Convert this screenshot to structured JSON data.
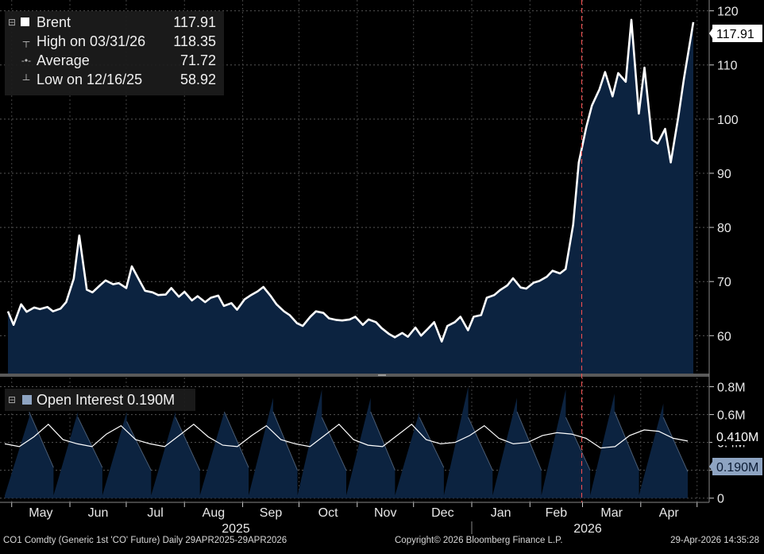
{
  "legend": {
    "rows": [
      {
        "label": "Brent",
        "value": "117.91"
      },
      {
        "label": "High on 03/31/26",
        "value": "118.35"
      },
      {
        "label": "Average",
        "value": "71.72"
      },
      {
        "label": "Low on 12/16/25",
        "value": "58.92"
      }
    ]
  },
  "lower_legend": {
    "label": "Open Interest 0.190M"
  },
  "footer": {
    "left": "CO1 Comdty (Generic 1st 'CO' Future) Daily 29APR2025-29APR2026",
    "center": "Copyright© 2026 Bloomberg Finance L.P.",
    "right": "29-Apr-2026 14:35:28"
  },
  "colors": {
    "background": "#000000",
    "fill": "#0c2340",
    "line": "#ffffff",
    "marker": "#ff5050",
    "label_box": "#8ea4c2"
  },
  "chart_data": [
    {
      "type": "area",
      "series": [
        {
          "name": "Brent",
          "last_value": "117.91"
        }
      ],
      "x": [
        "2025-04-29",
        "2025-05-02",
        "2025-05-06",
        "2025-05-09",
        "2025-05-13",
        "2025-05-16",
        "2025-05-20",
        "2025-05-23",
        "2025-05-27",
        "2025-05-30",
        "2025-06-03",
        "2025-06-06",
        "2025-06-10",
        "2025-06-13",
        "2025-06-17",
        "2025-06-20",
        "2025-06-24",
        "2025-06-27",
        "2025-07-01",
        "2025-07-04",
        "2025-07-08",
        "2025-07-11",
        "2025-07-15",
        "2025-07-18",
        "2025-07-22",
        "2025-07-25",
        "2025-07-29",
        "2025-08-01",
        "2025-08-05",
        "2025-08-08",
        "2025-08-12",
        "2025-08-15",
        "2025-08-19",
        "2025-08-22",
        "2025-08-26",
        "2025-08-29",
        "2025-09-02",
        "2025-09-05",
        "2025-09-09",
        "2025-09-12",
        "2025-09-16",
        "2025-09-19",
        "2025-09-23",
        "2025-09-26",
        "2025-09-30",
        "2025-10-03",
        "2025-10-07",
        "2025-10-10",
        "2025-10-14",
        "2025-10-17",
        "2025-10-21",
        "2025-10-24",
        "2025-10-28",
        "2025-10-31",
        "2025-11-04",
        "2025-11-07",
        "2025-11-11",
        "2025-11-14",
        "2025-11-18",
        "2025-11-21",
        "2025-11-25",
        "2025-11-28",
        "2025-12-02",
        "2025-12-05",
        "2025-12-09",
        "2025-12-12",
        "2025-12-16",
        "2025-12-19",
        "2025-12-23",
        "2025-12-26",
        "2025-12-30",
        "2026-01-02",
        "2026-01-06",
        "2026-01-09",
        "2026-01-13",
        "2026-01-16",
        "2026-01-20",
        "2026-01-23",
        "2026-01-27",
        "2026-01-30",
        "2026-02-03",
        "2026-02-06",
        "2026-02-10",
        "2026-02-13",
        "2026-02-17",
        "2026-02-20",
        "2026-02-24",
        "2026-02-27",
        "2026-03-03",
        "2026-03-06",
        "2026-03-10",
        "2026-03-13",
        "2026-03-17",
        "2026-03-20",
        "2026-03-24",
        "2026-03-27",
        "2026-03-31",
        "2026-04-03",
        "2026-04-07",
        "2026-04-10",
        "2026-04-14",
        "2026-04-17",
        "2026-04-21",
        "2026-04-24",
        "2026-04-29"
      ],
      "y": [
        64.5,
        62.0,
        65.8,
        64.4,
        65.2,
        64.9,
        65.3,
        64.5,
        65.0,
        66.2,
        70.5,
        78.5,
        68.5,
        68.0,
        69.3,
        70.2,
        69.5,
        69.7,
        68.8,
        72.8,
        70.2,
        68.3,
        68.0,
        67.5,
        67.6,
        68.8,
        67.2,
        68.1,
        66.5,
        67.3,
        66.2,
        67.0,
        67.4,
        65.5,
        66.0,
        64.8,
        66.7,
        67.4,
        68.2,
        69.0,
        67.3,
        65.8,
        64.5,
        63.8,
        62.3,
        61.8,
        63.5,
        64.5,
        64.2,
        63.2,
        62.9,
        62.8,
        63.0,
        63.5,
        62.0,
        63.0,
        62.5,
        61.4,
        60.3,
        59.7,
        60.5,
        59.8,
        61.5,
        60.0,
        61.4,
        62.5,
        58.92,
        61.8,
        62.5,
        63.5,
        61.0,
        63.5,
        63.8,
        67.0,
        67.5,
        68.4,
        69.3,
        70.6,
        68.9,
        68.7,
        69.8,
        70.1,
        70.9,
        72.0,
        71.5,
        72.3,
        80.5,
        92.0,
        98.5,
        102.5,
        105.5,
        108.7,
        104.2,
        108.5,
        106.9,
        118.35,
        101.0,
        109.5,
        96.2,
        95.5,
        98.2,
        92.0,
        100.4,
        107.5,
        117.91
      ],
      "ylim": [
        53,
        122
      ],
      "yticks": [
        60,
        70,
        80,
        90,
        100,
        110,
        120
      ]
    },
    {
      "type": "area",
      "series": [
        {
          "name": "Open Interest",
          "last_value": "0.190M"
        },
        {
          "name": "",
          "last_value": "0.410M"
        }
      ],
      "ylim": [
        -0.03,
        0.86
      ],
      "yticks": [
        "0",
        "0.2M",
        "0.4M",
        "0.6M",
        "0.8M"
      ],
      "yticks_values": [
        0,
        0.2,
        0.4,
        0.6,
        0.8
      ],
      "open_interest": [
        [
          0.02,
          0.58
        ],
        [
          0.62,
          0.22
        ],
        [
          0.02,
          0.62
        ],
        [
          0.58,
          0.22
        ],
        [
          0.02,
          0.62
        ],
        [
          0.55,
          0.2
        ],
        [
          0.02,
          0.62
        ],
        [
          0.58,
          0.2
        ],
        [
          0.02,
          0.62
        ],
        [
          0.62,
          0.22
        ],
        [
          0.02,
          0.72
        ],
        [
          0.62,
          0.2
        ],
        [
          0.02,
          0.78
        ],
        [
          0.58,
          0.2
        ],
        [
          0.02,
          0.72
        ],
        [
          0.62,
          0.2
        ],
        [
          0.02,
          0.62
        ],
        [
          0.58,
          0.22
        ],
        [
          0.02,
          0.8
        ],
        [
          0.58,
          0.2
        ],
        [
          0.02,
          0.72
        ],
        [
          0.62,
          0.2
        ],
        [
          0.02,
          0.78
        ],
        [
          0.58,
          0.2
        ],
        [
          0.02,
          0.75
        ],
        [
          0.62,
          0.2
        ],
        [
          0.02,
          0.68
        ],
        [
          0.58,
          0.19
        ]
      ],
      "average_line": [
        0.39,
        0.37,
        0.44,
        0.53,
        0.42,
        0.39,
        0.37,
        0.46,
        0.52,
        0.42,
        0.39,
        0.37,
        0.45,
        0.53,
        0.44,
        0.38,
        0.37,
        0.45,
        0.52,
        0.42,
        0.39,
        0.37,
        0.45,
        0.53,
        0.42,
        0.38,
        0.37,
        0.45,
        0.53,
        0.42,
        0.39,
        0.4,
        0.45,
        0.52,
        0.43,
        0.39,
        0.4,
        0.45,
        0.47,
        0.46,
        0.43,
        0.36,
        0.37,
        0.45,
        0.49,
        0.48,
        0.43,
        0.41
      ]
    }
  ],
  "xaxis": {
    "months": [
      "May",
      "Jun",
      "Jul",
      "Aug",
      "Sep",
      "Oct",
      "Nov",
      "Dec",
      "Jan",
      "Feb",
      "Mar",
      "Apr"
    ],
    "years": [
      "2025",
      "2026"
    ],
    "start": "2025-04-29",
    "end": "2026-04-29",
    "marker_date": "2026-03-01"
  }
}
